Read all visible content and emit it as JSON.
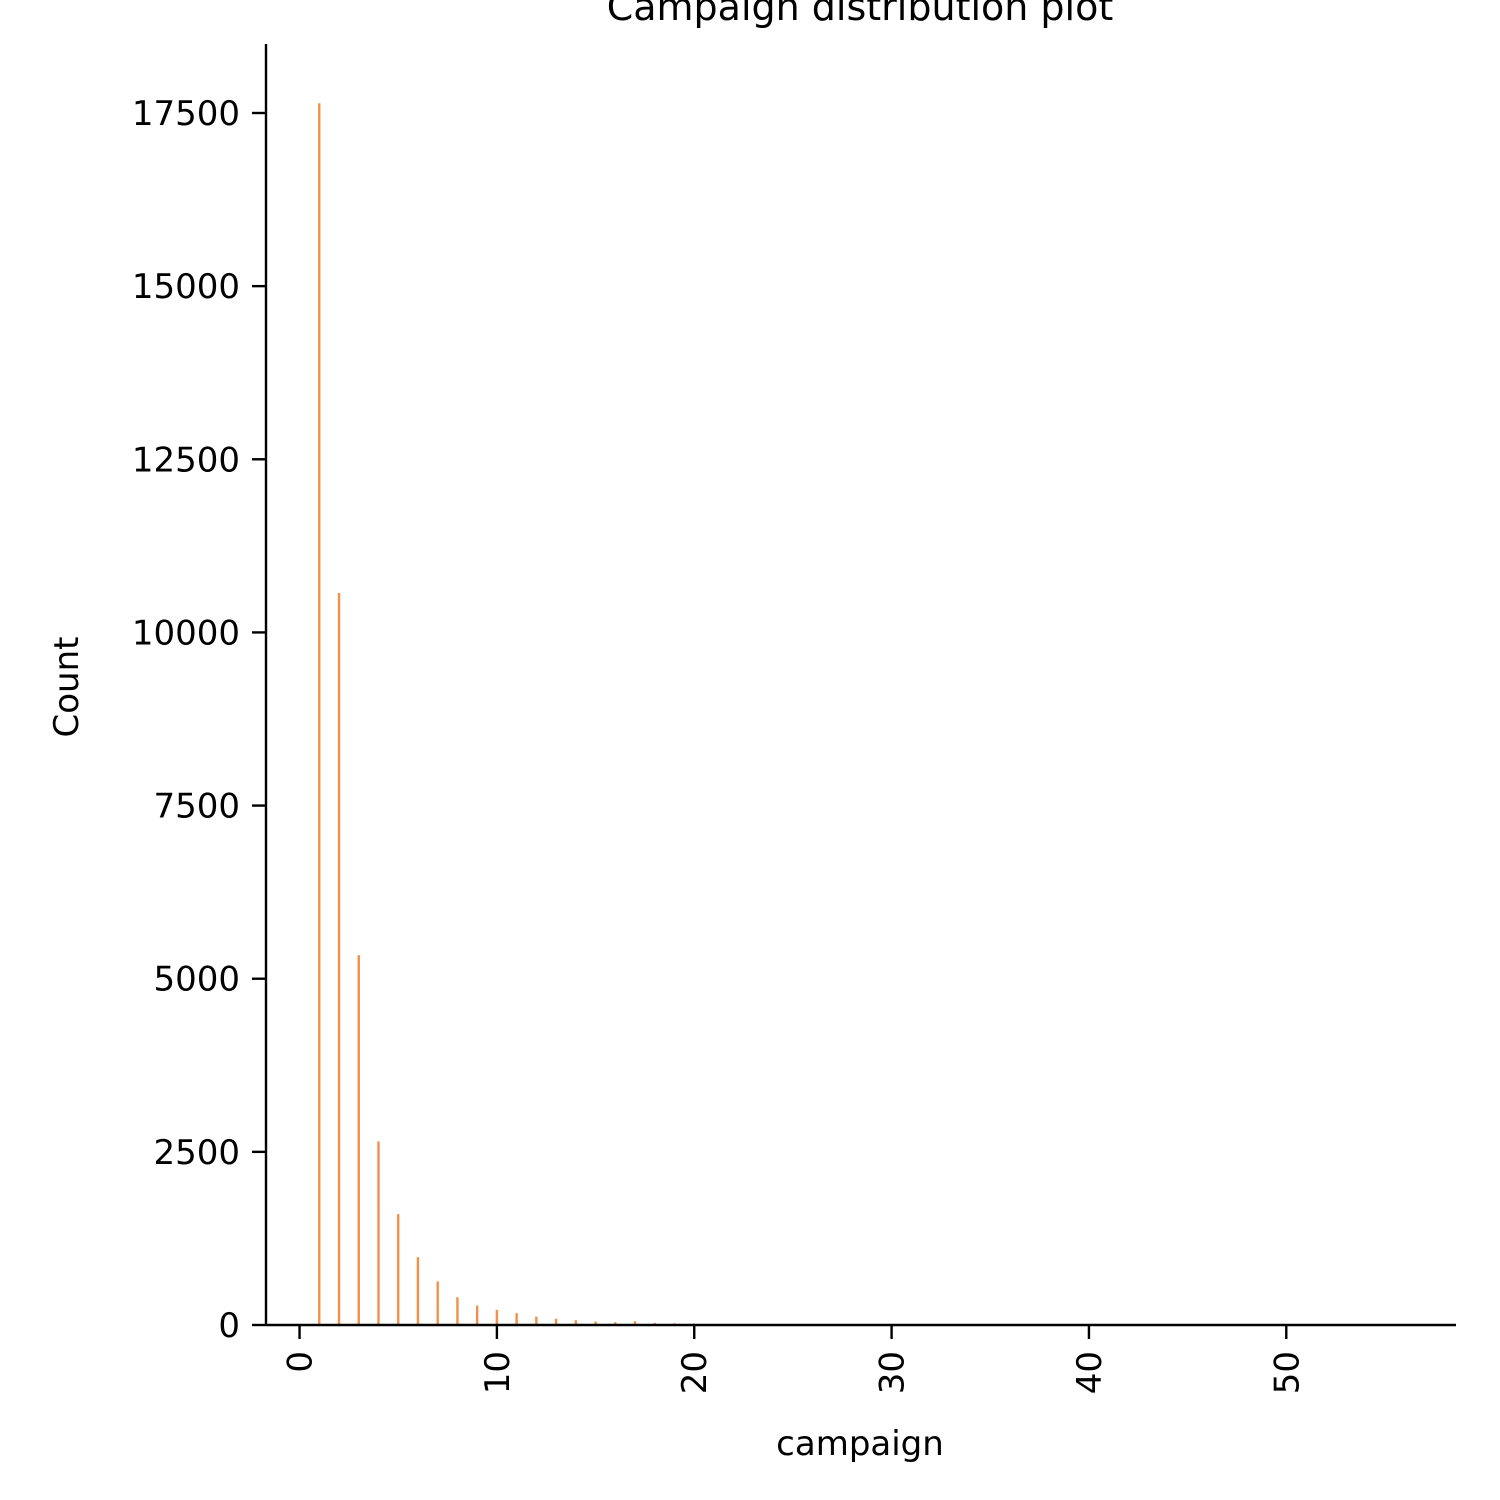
{
  "chart_data": {
    "type": "bar",
    "title": "Campaign distribution plot",
    "xlabel": "campaign",
    "ylabel": "Count",
    "xlim": [
      -1.7,
      58.6
    ],
    "ylim": [
      0,
      18500
    ],
    "xticks": [
      0,
      10,
      20,
      30,
      40,
      50
    ],
    "yticks": [
      0,
      2500,
      5000,
      7500,
      10000,
      12500,
      15000,
      17500
    ],
    "grid": false,
    "bar_color": "#f0914a",
    "series": [
      {
        "x": [
          1,
          2,
          3,
          4,
          5,
          6,
          7,
          8,
          9,
          10,
          11,
          12,
          13,
          14,
          15,
          16,
          17,
          18,
          19,
          20
        ],
        "values": [
          17640,
          10570,
          5340,
          2650,
          1600,
          980,
          630,
          400,
          280,
          220,
          170,
          120,
          90,
          70,
          50,
          40,
          55,
          30,
          25,
          20
        ]
      }
    ]
  }
}
